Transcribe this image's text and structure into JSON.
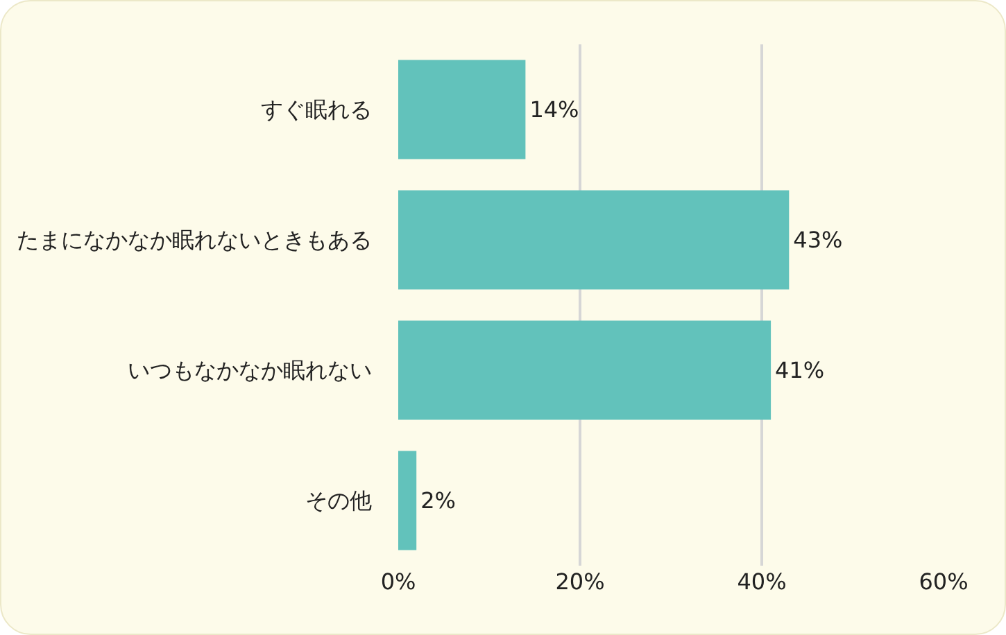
{
  "chart_data": {
    "type": "bar",
    "orientation": "horizontal",
    "categories": [
      "すぐ眠れる",
      "たまになかなか眠れないときもある",
      "いつもなかなか眠れない",
      "その他"
    ],
    "values": [
      14,
      43,
      41,
      2
    ],
    "value_labels": [
      "14%",
      "43%",
      "41%",
      "2%"
    ],
    "color": "#62c2bb",
    "xlim": [
      0,
      60
    ],
    "xticks": [
      {
        "value": 0,
        "label": "0%"
      },
      {
        "value": 20,
        "label": "20%"
      },
      {
        "value": 40,
        "label": "40%"
      },
      {
        "value": 60,
        "label": "60%"
      }
    ],
    "grid": "x"
  }
}
